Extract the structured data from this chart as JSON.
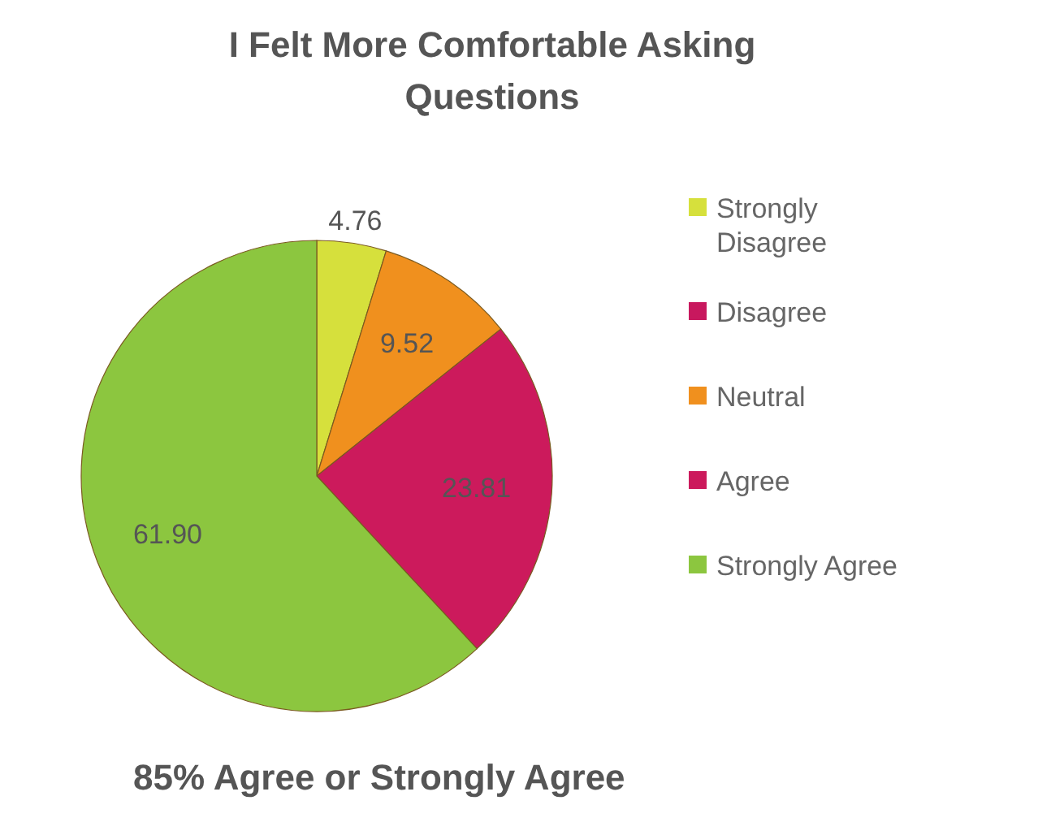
{
  "chart_data": {
    "type": "pie",
    "title": "I Felt More Comfortable Asking Questions",
    "categories": [
      "Strongly Disagree",
      "Disagree",
      "Neutral",
      "Agree",
      "Strongly Agree"
    ],
    "values": [
      4.76,
      0,
      9.52,
      23.81,
      61.9
    ],
    "value_labels": [
      "4.76",
      null,
      "9.52",
      "23.81",
      "61.90"
    ],
    "colors": [
      "#d6e03c",
      "#c8185e",
      "#f0901e",
      "#cc1a5c",
      "#8cc63f"
    ],
    "legend": "right",
    "annotations": [
      "85% Agree or Strongly Agree"
    ]
  }
}
